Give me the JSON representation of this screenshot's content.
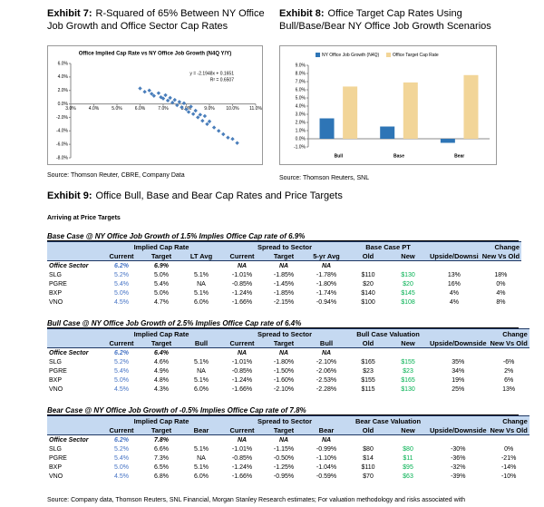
{
  "exhibit_7": {
    "label": "Exhibit 7:",
    "title": "R-Squared of 65% Between NY Office Job Growth and Office Sector Cap Rates",
    "source": "Source: Thomson Reuter, CBRE, Company Data"
  },
  "exhibit_8": {
    "label": "Exhibit 8:",
    "title": "Office Target Cap Rates Using Bull/Base/Bear NY Office Job Growth Scenarios",
    "source": "Source: Thomson Reuters, SNL"
  },
  "chart_data": [
    {
      "type": "scatter",
      "title": "Office Implied Cap Rate vs NY Office Job Growth (N4Q Y/Y)",
      "annotations": [
        "y = -2.1948x + 0.1651",
        "R² = 0.6507"
      ],
      "color": "#4a7ebb",
      "x": [
        6.0,
        6.2,
        6.4,
        6.5,
        6.6,
        6.8,
        6.9,
        7.0,
        7.1,
        7.2,
        7.3,
        7.4,
        7.5,
        7.6,
        7.7,
        7.8,
        7.9,
        8.0,
        8.1,
        8.2,
        8.3,
        8.4,
        8.5,
        8.6,
        8.7,
        8.8,
        8.9,
        9.0,
        9.2,
        9.4,
        9.6,
        9.8,
        10.0,
        10.2
      ],
      "values": [
        2.3,
        1.8,
        2.0,
        1.5,
        1.2,
        1.6,
        1.0,
        0.8,
        1.3,
        0.5,
        0.9,
        0.2,
        0.6,
        -0.2,
        0.3,
        -0.5,
        0.1,
        -0.8,
        -1.2,
        -0.4,
        -1.5,
        -1.0,
        -2.0,
        -1.6,
        -2.5,
        -1.8,
        -3.0,
        -2.6,
        -3.5,
        -4.0,
        -4.5,
        -5.0,
        -5.2,
        -5.8
      ],
      "xlim": [
        3,
        11
      ],
      "ylim": [
        -8,
        6
      ],
      "xticks": [
        {
          "value": 3,
          "label": "3.0%"
        },
        {
          "value": 4,
          "label": "4.0%"
        },
        {
          "value": 5,
          "label": "5.0%"
        },
        {
          "value": 6,
          "label": "6.0%"
        },
        {
          "value": 7,
          "label": "7.0%"
        },
        {
          "value": 8,
          "label": "8.0%"
        },
        {
          "value": 9,
          "label": "9.0%"
        },
        {
          "value": 10,
          "label": "10.0%"
        },
        {
          "value": 11,
          "label": "11.0%"
        }
      ],
      "yticks": [
        {
          "value": 6,
          "label": "6.0%"
        },
        {
          "value": 4,
          "label": "4.0%"
        },
        {
          "value": 2,
          "label": "2.0%"
        },
        {
          "value": 0,
          "label": "0.0%"
        },
        {
          "value": -2,
          "label": "-2.0%"
        },
        {
          "value": -4,
          "label": "-4.0%"
        },
        {
          "value": -6,
          "label": "-6.0%"
        },
        {
          "value": -8,
          "label": "-8.0%"
        }
      ]
    },
    {
      "type": "bar",
      "categories": [
        "Bull",
        "Base",
        "Bear"
      ],
      "legend": "top",
      "series": [
        {
          "name": "NY Office Job Growth (N4Q)",
          "color": "#2e75b6",
          "values": [
            2.5,
            1.5,
            -0.5
          ]
        },
        {
          "name": "Office Target Cap Rate",
          "color": "#f2d598",
          "values": [
            6.4,
            6.9,
            7.8
          ]
        }
      ],
      "ylim": [
        -1,
        9
      ],
      "yticks": [
        {
          "value": 9,
          "label": "9.0%"
        },
        {
          "value": 8,
          "label": "8.0%"
        },
        {
          "value": 7,
          "label": "7.0%"
        },
        {
          "value": 6,
          "label": "6.0%"
        },
        {
          "value": 5,
          "label": "5.0%"
        },
        {
          "value": 4,
          "label": "4.0%"
        },
        {
          "value": 3,
          "label": "3.0%"
        },
        {
          "value": 2,
          "label": "2.0%"
        },
        {
          "value": 1,
          "label": "1.0%"
        },
        {
          "value": 0,
          "label": "0.0%"
        },
        {
          "value": -1,
          "label": "-1.0%"
        }
      ]
    }
  ],
  "exhibit_9": {
    "label": "Exhibit 9:",
    "title": "Office Bull, Base and Bear Cap Rates and Price Targets",
    "subtitle": "Arriving at Price Targets",
    "tables": [
      {
        "title": "Base Case @ NY Office Job Growth of 1.5% Implies Office Cap rate of 6.9%",
        "groups": [
          null,
          "Implied Cap Rate",
          "Spread to Sector",
          "Base Case PT",
          null,
          "Change"
        ],
        "columns": [
          null,
          "Current",
          "Target",
          "LT Avg",
          "Current",
          "Target",
          "5-yr Avg",
          "Old",
          "New",
          "Upside/Downsi",
          "New Vs Old"
        ],
        "rows": [
          [
            "Office Sector",
            "6.2%",
            "6.9%",
            null,
            "NA",
            "NA",
            "NA",
            null,
            null,
            null,
            null
          ],
          [
            "SLG",
            "5.2%",
            "5.0%",
            "5.1%",
            "-1.01%",
            "-1.85%",
            "-1.78%",
            "$110",
            "$130",
            "13%",
            "18%"
          ],
          [
            "PGRE",
            "5.4%",
            "5.4%",
            "NA",
            "-0.85%",
            "-1.45%",
            "-1.80%",
            "$20",
            "$20",
            "16%",
            "0%"
          ],
          [
            "BXP",
            "5.0%",
            "5.0%",
            "5.1%",
            "-1.24%",
            "-1.85%",
            "-1.74%",
            "$140",
            "$145",
            "4%",
            "4%"
          ],
          [
            "VNO",
            "4.5%",
            "4.7%",
            "6.0%",
            "-1.66%",
            "-2.15%",
            "-0.94%",
            "$100",
            "$108",
            "4%",
            "8%"
          ]
        ]
      },
      {
        "title": "Bull Case @ NY Office Job Growth of 2.5%  Implies Office Cap rate of 6.4%",
        "groups": [
          null,
          "Implied Cap Rate",
          "Spread to Sector",
          "Bull Case Valuation",
          null,
          "Change"
        ],
        "columns": [
          null,
          "Current",
          "Target",
          "Bull",
          "Current",
          "Target",
          "Bull",
          "Old",
          "New",
          "Upside/Downside",
          "New Vs Old"
        ],
        "rows": [
          [
            "Office Sector",
            "6.2%",
            "6.4%",
            null,
            "NA",
            "NA",
            "NA",
            null,
            null,
            null,
            null
          ],
          [
            "SLG",
            "5.2%",
            "4.6%",
            "5.1%",
            "-1.01%",
            "-1.80%",
            "-2.10%",
            "$165",
            "$155",
            "35%",
            "-6%"
          ],
          [
            "PGRE",
            "5.4%",
            "4.9%",
            "NA",
            "-0.85%",
            "-1.50%",
            "-2.06%",
            "$23",
            "$23",
            "34%",
            "2%"
          ],
          [
            "BXP",
            "5.0%",
            "4.8%",
            "5.1%",
            "-1.24%",
            "-1.60%",
            "-2.53%",
            "$155",
            "$165",
            "19%",
            "6%"
          ],
          [
            "VNO",
            "4.5%",
            "4.3%",
            "6.0%",
            "-1.66%",
            "-2.10%",
            "-2.28%",
            "$115",
            "$130",
            "25%",
            "13%"
          ]
        ]
      },
      {
        "title": "Bear Case @ NY Office Job Growth of -0.5%  Implies Office Cap rate of 7.8%",
        "groups": [
          null,
          "Implied Cap Rate",
          "Spread to Sector",
          "Bear Case Valuation",
          null,
          "Change"
        ],
        "columns": [
          null,
          "Current",
          "Target",
          "Bear",
          "Current",
          "Target",
          "Bear",
          "Old",
          "New",
          "Upside/Downside",
          "New Vs Old"
        ],
        "rows": [
          [
            "Office Sector",
            "6.2%",
            "7.8%",
            null,
            "NA",
            "NA",
            "NA",
            null,
            null,
            null,
            null
          ],
          [
            "SLG",
            "5.2%",
            "6.6%",
            "5.1%",
            "-1.01%",
            "-1.15%",
            "-0.99%",
            "$80",
            "$80",
            "-30%",
            "0%"
          ],
          [
            "PGRE",
            "5.4%",
            "7.3%",
            "NA",
            "-0.85%",
            "-0.50%",
            "-1.10%",
            "$14",
            "$11",
            "-36%",
            "-21%"
          ],
          [
            "BXP",
            "5.0%",
            "6.5%",
            "5.1%",
            "-1.24%",
            "-1.25%",
            "-1.04%",
            "$110",
            "$95",
            "-32%",
            "-14%"
          ],
          [
            "VNO",
            "4.5%",
            "6.8%",
            "6.0%",
            "-1.66%",
            "-0.95%",
            "-0.59%",
            "$70",
            "$63",
            "-39%",
            "-10%"
          ]
        ]
      }
    ]
  },
  "footer": "Source: Company data, Thomson Reuters, SNL Financial, Morgan Stanley Research estimates; For valuation methodology and risks associated with"
}
